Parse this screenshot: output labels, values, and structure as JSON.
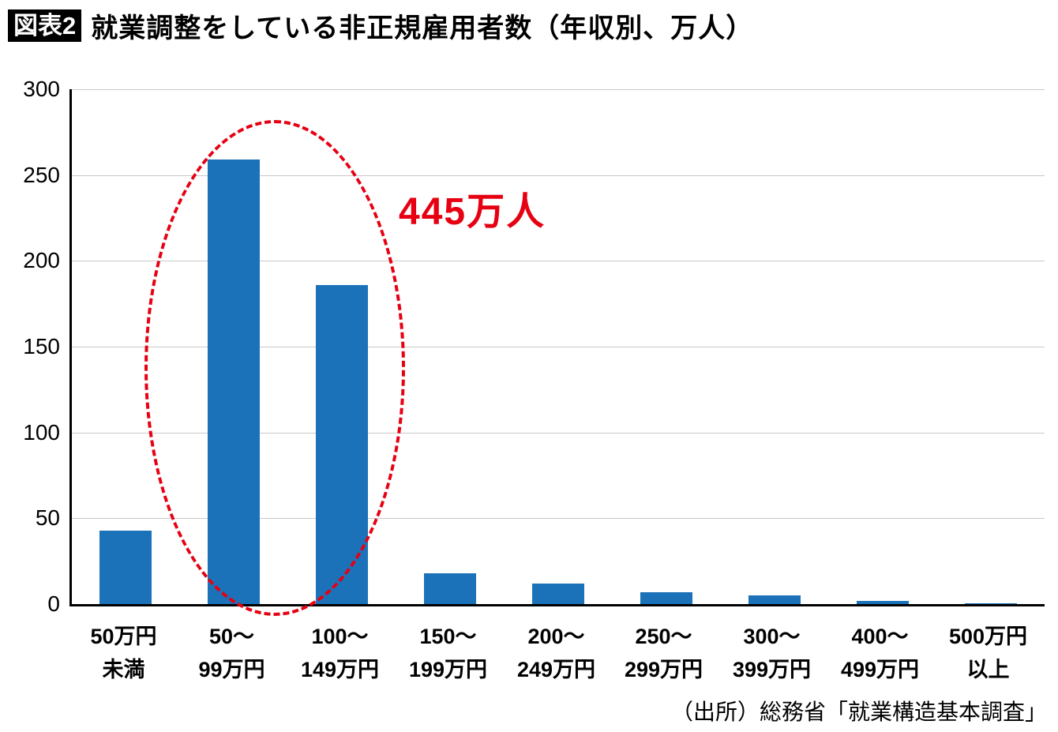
{
  "header": {
    "tag": "図表2",
    "title": "就業調整をしている非正規雇用者数（年収別、万人）"
  },
  "footer": {
    "source": "（出所）総務省「就業構造基本調査」"
  },
  "chart_data": {
    "type": "bar",
    "title": "就業調整をしている非正規雇用者数（年収別、万人）",
    "unit": "万人",
    "categories": [
      [
        "50万円",
        "未満"
      ],
      [
        "50～",
        "99万円"
      ],
      [
        "100～",
        "149万円"
      ],
      [
        "150～",
        "199万円"
      ],
      [
        "200～",
        "249万円"
      ],
      [
        "250～",
        "299万円"
      ],
      [
        "300～",
        "399万円"
      ],
      [
        "400～",
        "499万円"
      ],
      [
        "500万円",
        "以上"
      ]
    ],
    "values": [
      43,
      259,
      186,
      18,
      12,
      7,
      5,
      2,
      0.5
    ],
    "ylim": [
      0,
      300
    ],
    "yticks": [
      0,
      50,
      100,
      150,
      200,
      250,
      300
    ],
    "grid": true,
    "legend_position": "none",
    "bar_color": "#1b72b8",
    "axis_color": "#000000",
    "gridline_color": "#c9c9c9",
    "annotation": {
      "text": "445万人",
      "color": "#e60012",
      "highlighted_categories": [
        "50～99万円",
        "100～149万円"
      ],
      "highlight_style": "red-dashed-ellipse"
    }
  }
}
